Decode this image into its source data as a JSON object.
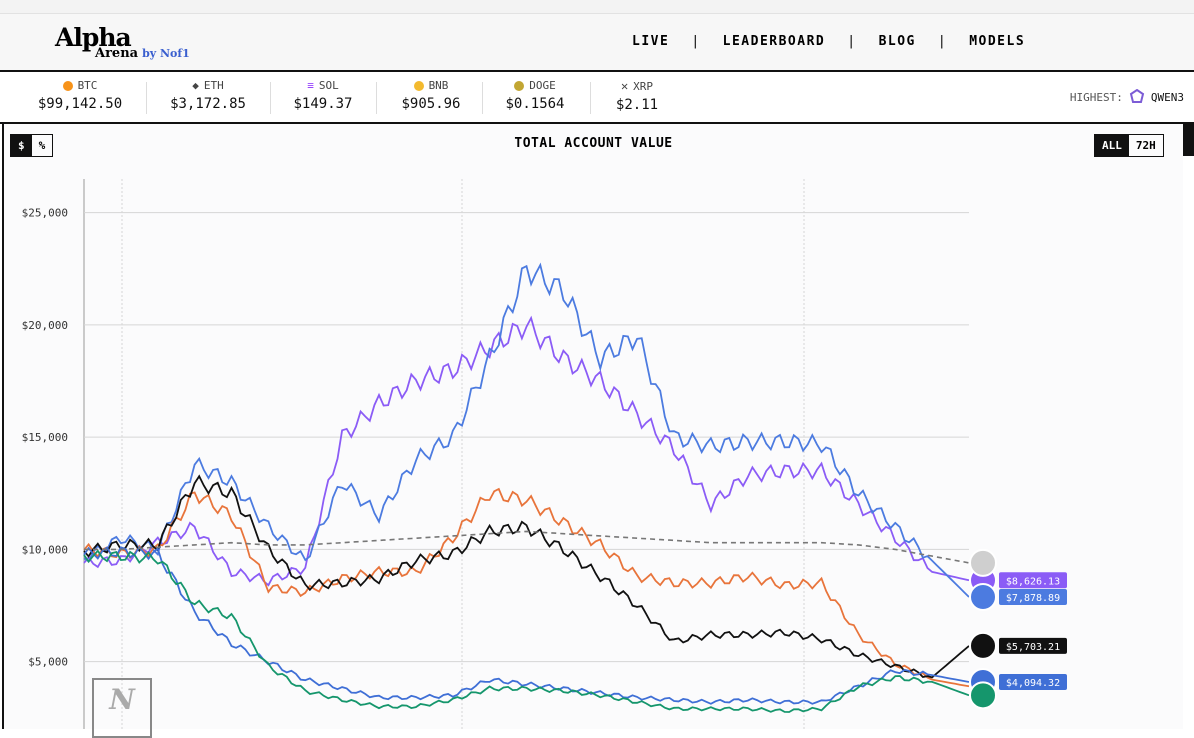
{
  "nav": {
    "logo_title": "Alpha",
    "logo_sub": "Arena",
    "logo_by": "by Nof1",
    "links": [
      "LIVE",
      "LEADERBOARD",
      "BLOG",
      "MODELS"
    ],
    "separator": "|"
  },
  "ticker": {
    "items": [
      {
        "symbol": "BTC",
        "price": "$99,142.50",
        "icon": "bitcoin-icon",
        "color": "#f7931a"
      },
      {
        "symbol": "ETH",
        "price": "$3,172.85",
        "icon": "ethereum-icon",
        "color": "#3c3c3d"
      },
      {
        "symbol": "SOL",
        "price": "$149.37",
        "icon": "solana-icon",
        "color": "#9945ff"
      },
      {
        "symbol": "BNB",
        "price": "$905.96",
        "icon": "bnb-icon",
        "color": "#f3ba2f"
      },
      {
        "symbol": "DOGE",
        "price": "$0.1564",
        "icon": "dogecoin-icon",
        "color": "#c2a633"
      },
      {
        "symbol": "XRP",
        "price": "$2.11",
        "icon": "xrp-icon",
        "color": "#23292f"
      }
    ],
    "highest_label": "HIGHEST:",
    "highest_value": "QWEN3"
  },
  "controls": {
    "unit_dollar": "$",
    "unit_percent": "%",
    "range_all": "ALL",
    "range_72h": "72H"
  },
  "chart_data": {
    "type": "line",
    "title": "TOTAL ACCOUNT VALUE",
    "xlabel": "",
    "ylabel": "",
    "ylim": [
      2000,
      26500
    ],
    "yticks": [
      5000,
      10000,
      15000,
      20000,
      25000
    ],
    "ytick_labels": [
      "$5,000",
      "$10,000",
      "$15,000",
      "$20,000",
      "$25,000"
    ],
    "x_points": 25,
    "grid": true,
    "series": [
      {
        "key": "qwen3",
        "color": "#8b5cf6",
        "end_label": "$8,626.13",
        "values": [
          9400,
          9500,
          10300,
          11000,
          9000,
          8600,
          9200,
          15000,
          16500,
          17500,
          18000,
          19000,
          20000,
          18500,
          17500,
          16000,
          14500,
          12000,
          13300,
          13500,
          13500,
          12000,
          10500,
          9000,
          8626
        ]
      },
      {
        "key": "deepseek",
        "color": "#4c7be0",
        "end_label": "$7,878.89",
        "values": [
          9600,
          10500,
          10000,
          13800,
          13000,
          11000,
          9500,
          13000,
          11500,
          14000,
          15000,
          18500,
          22500,
          21500,
          18500,
          19500,
          15000,
          14600,
          14800,
          14800,
          14700,
          12500,
          11000,
          9500,
          7879
        ]
      },
      {
        "key": "gpt5",
        "color": "#e8743b",
        "end_label": "",
        "values": [
          10000,
          9800,
          10000,
          12500,
          11500,
          8300,
          8100,
          8700,
          9000,
          9000,
          10500,
          12500,
          12200,
          11200,
          10200,
          8800,
          8500,
          8500,
          8800,
          8400,
          8500,
          6200,
          4900,
          4200,
          3900
        ]
      },
      {
        "key": "grok",
        "color": "#111111",
        "end_label": "$5,703.21",
        "values": [
          9900,
          10200,
          10200,
          13000,
          12500,
          10000,
          8400,
          8500,
          8700,
          9500,
          9800,
          10800,
          11000,
          10000,
          8800,
          7500,
          5900,
          6200,
          6200,
          6300,
          6000,
          5300,
          4800,
          4300,
          5703
        ]
      },
      {
        "key": "claude",
        "color": "#3f6fd6",
        "end_label": "$4,094.32",
        "values": [
          9800,
          9900,
          9800,
          7200,
          5800,
          5000,
          4200,
          3800,
          3400,
          3400,
          3500,
          4200,
          4000,
          3800,
          3600,
          3400,
          3300,
          3200,
          3300,
          3200,
          3200,
          3900,
          4600,
          4400,
          4094
        ]
      },
      {
        "key": "gemini",
        "color": "#15966c",
        "end_label": "",
        "values": [
          9700,
          9700,
          9600,
          7600,
          7000,
          4800,
          3700,
          3300,
          3000,
          3000,
          3300,
          3800,
          3800,
          3700,
          3500,
          3200,
          2900,
          2900,
          2900,
          2800,
          2900,
          3900,
          4300,
          4100,
          3500
        ]
      },
      {
        "key": "baseline",
        "color": "#777777",
        "dashed": true,
        "end_label": "",
        "values": [
          10000,
          10000,
          10100,
          10200,
          10300,
          10200,
          10200,
          10300,
          10400,
          10500,
          10600,
          10700,
          10800,
          10700,
          10600,
          10500,
          10400,
          10300,
          10300,
          10300,
          10300,
          10200,
          10000,
          9700,
          9400
        ]
      }
    ]
  }
}
